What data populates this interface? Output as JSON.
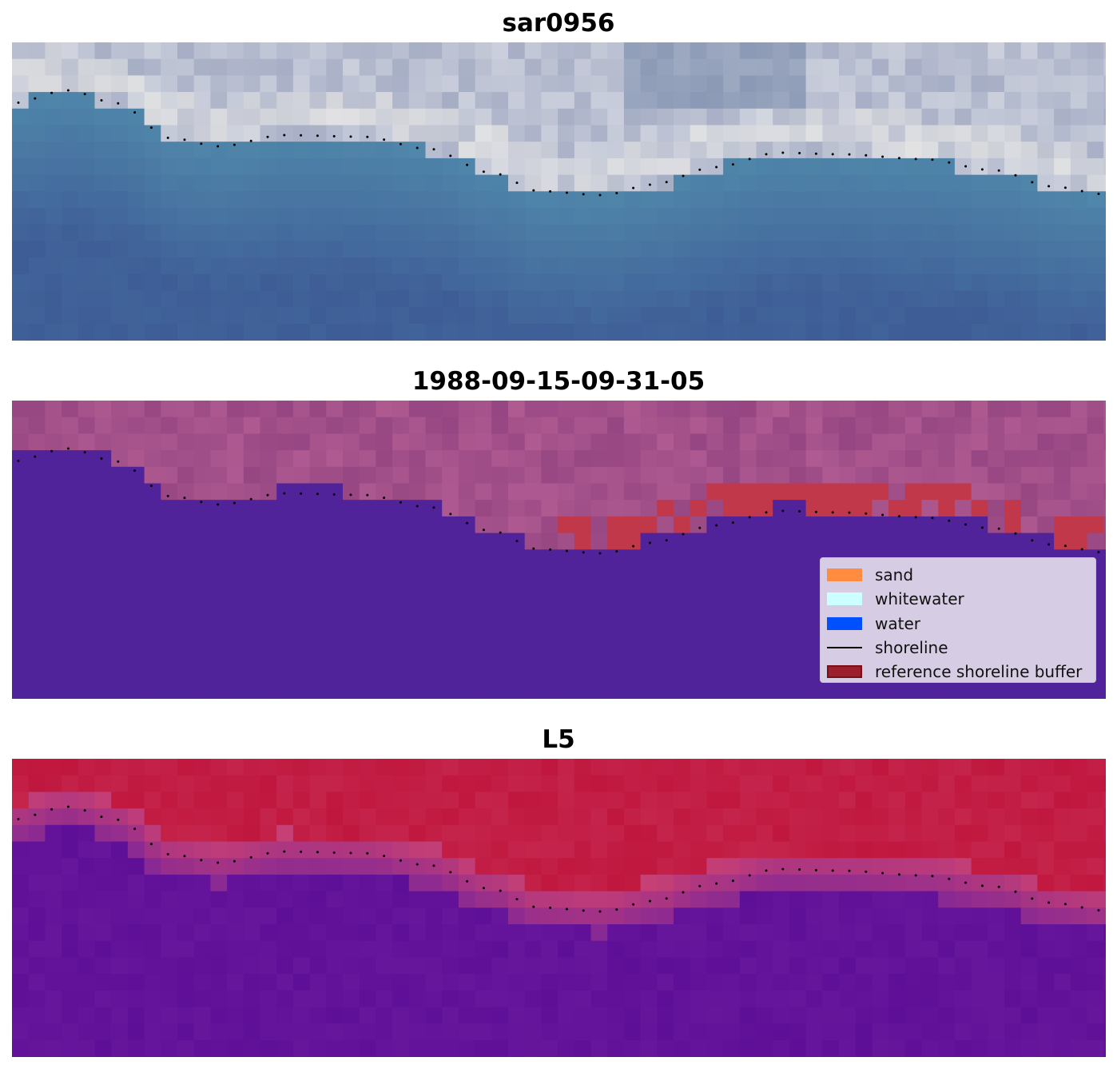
{
  "panels": [
    {
      "title": "sar0956",
      "style": "rgb"
    },
    {
      "title": "1988-09-15-09-31-05",
      "style": "classes"
    },
    {
      "title": "L5",
      "style": "probability"
    }
  ],
  "legend": {
    "placement": "lower-right of middle panel",
    "items": [
      {
        "label": "sand",
        "kind": "patch",
        "color": "#ff8c3f"
      },
      {
        "label": "whitewater",
        "kind": "patch",
        "color": "#ccffff"
      },
      {
        "label": "water",
        "kind": "patch",
        "color": "#0050ff"
      },
      {
        "label": "shoreline",
        "kind": "line",
        "color": "#000000"
      },
      {
        "label": "reference shoreline buffer",
        "kind": "patch",
        "color": "#9b1f2c"
      }
    ]
  },
  "colors": {
    "water_class": "#51239a",
    "buffer_class": "#c0384a",
    "land_class": "#a24e86",
    "probability_high": "#c0173e",
    "probability_low": "#5e0f97",
    "shoreline_dots": "#000000"
  }
}
